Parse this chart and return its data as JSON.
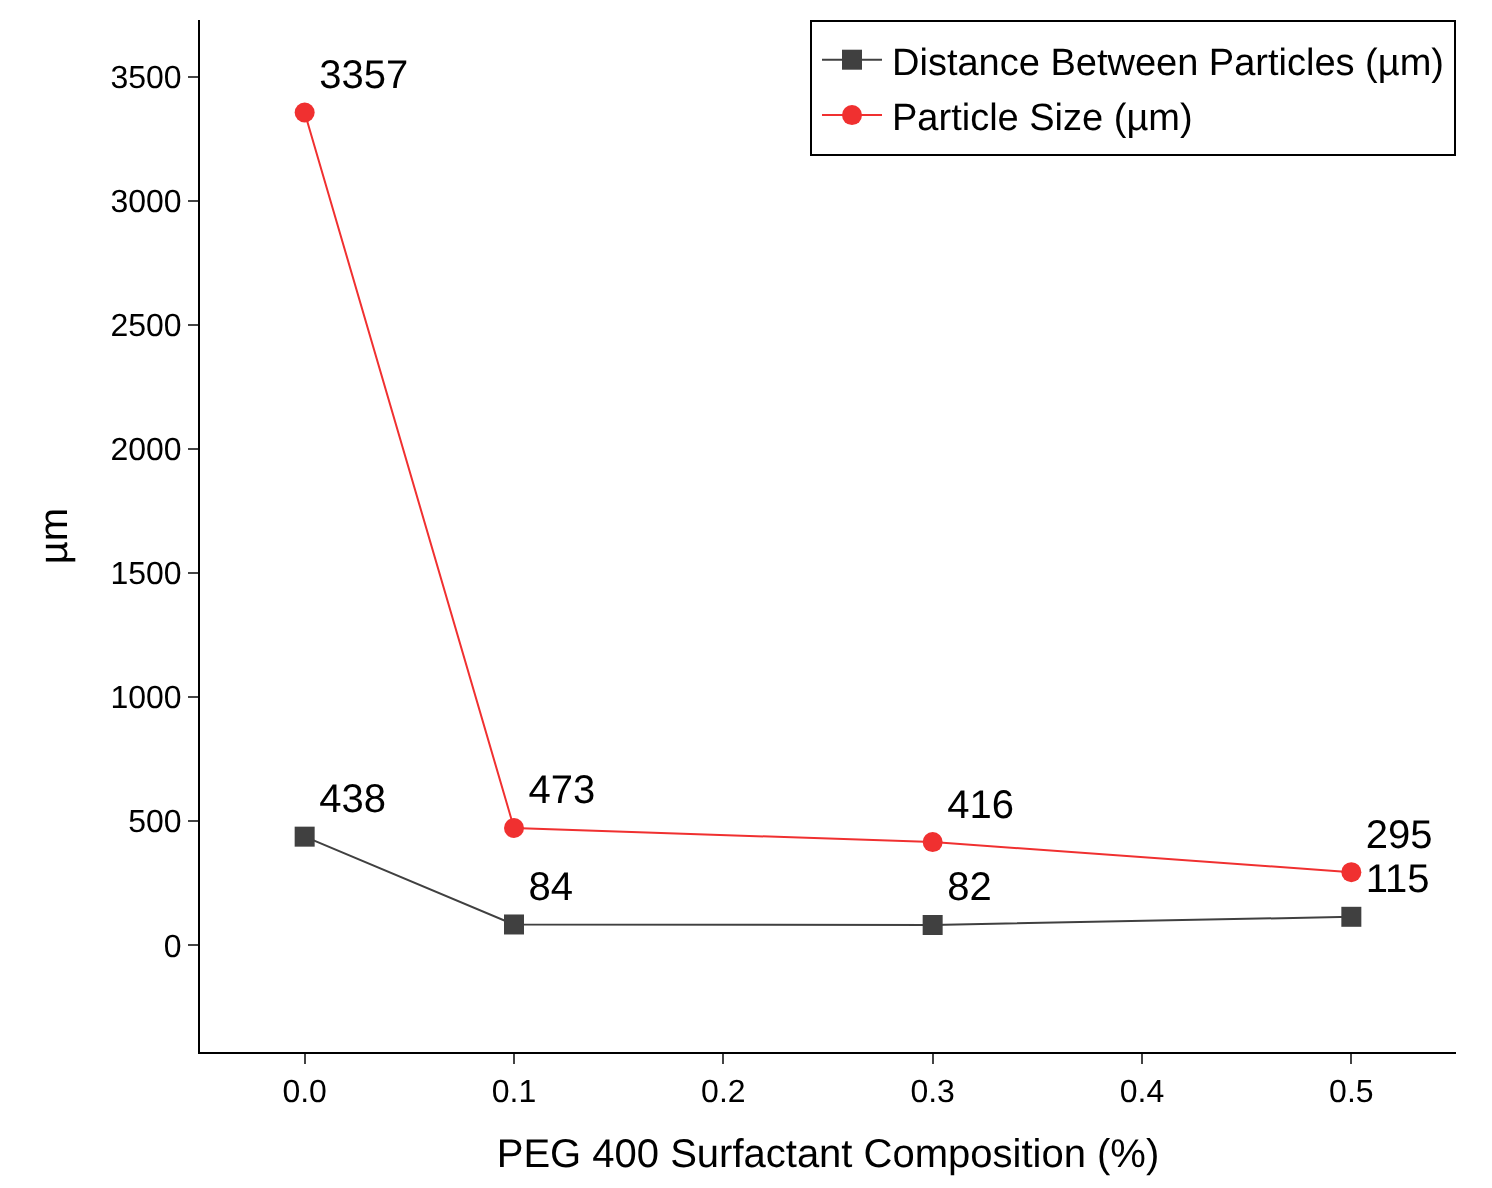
{
  "chart_data": {
    "type": "line",
    "xlabel": "PEG 400 Surfactant Composition (%)",
    "ylabel": "µm",
    "x": [
      0.0,
      0.1,
      0.3,
      0.5
    ],
    "series": [
      {
        "name": "Distance Between Particles (µm)",
        "color": "#404040",
        "marker": "square",
        "values": [
          438,
          84,
          82,
          115
        ]
      },
      {
        "name": "Particle Size (µm)",
        "color": "#f03030",
        "marker": "circle",
        "values": [
          3357,
          473,
          416,
          295
        ]
      }
    ],
    "xlim": [
      -0.05,
      0.55
    ],
    "xticks": [
      {
        "value": 0,
        "label": "0.0"
      },
      0.1,
      0.2,
      0.3,
      0.4,
      0.5
    ],
    "ylim": [
      -430,
      3730
    ],
    "yticks": [
      0,
      500,
      1000,
      1500,
      2000,
      2500,
      3000,
      3500
    ],
    "data_labels": true,
    "legend": "top right",
    "line_style": "solid"
  }
}
